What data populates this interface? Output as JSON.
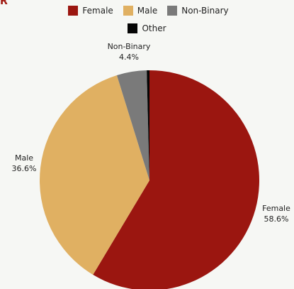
{
  "corner_mark": "R",
  "colors": {
    "background": "#f6f7f4",
    "female": "#9b1610",
    "male": "#e0b062",
    "non_binary": "#7a7a7a",
    "other": "#050505"
  },
  "chart_data": {
    "type": "pie",
    "title": "",
    "legend_position": "top",
    "slices": [
      {
        "name": "Female",
        "value": 58.6,
        "label": "58.6%",
        "color": "#9b1610"
      },
      {
        "name": "Male",
        "value": 36.6,
        "label": "36.6%",
        "color": "#e0b062"
      },
      {
        "name": "Non-Binary",
        "value": 4.4,
        "label": "4.4%",
        "color": "#7a7a7a"
      },
      {
        "name": "Other",
        "value": 0.4,
        "label": "",
        "color": "#050505"
      }
    ]
  }
}
